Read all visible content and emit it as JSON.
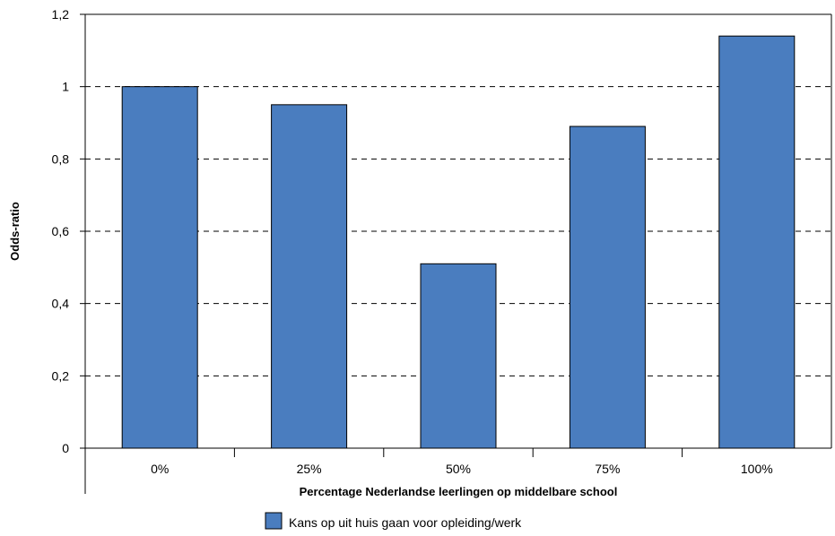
{
  "chart_data": {
    "type": "bar",
    "categories": [
      "0%",
      "25%",
      "50%",
      "75%",
      "100%"
    ],
    "series": [
      {
        "name": "Kans op uit huis gaan voor opleiding/werk",
        "values": [
          1.0,
          0.95,
          0.51,
          0.89,
          1.14
        ],
        "color": "#4a7dbf"
      }
    ],
    "xlabel": "Percentage Nederlandse leerlingen op middelbare school",
    "ylabel": "Odds-ratio",
    "ylim": [
      0,
      1.2
    ],
    "yticks": [
      0,
      0.2,
      0.4,
      0.6,
      0.8,
      1,
      1.2
    ],
    "ytick_labels": [
      "0",
      "0,2",
      "0,4",
      "0,6",
      "0,8",
      "1",
      "1,2"
    ],
    "grid": "horizontal dashed",
    "legend_position": "bottom"
  }
}
